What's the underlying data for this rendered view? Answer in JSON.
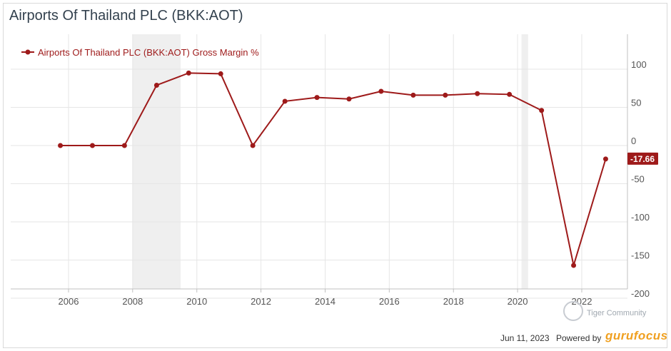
{
  "header": {
    "title": "Airports Of Thailand PLC  (BKK:AOT)"
  },
  "footer": {
    "date": "Jun 11, 2023",
    "powered_label": "Powered by",
    "brand": "gurufocus",
    "watermark": "Tiger Community"
  },
  "colors": {
    "series": "#9e1a1a",
    "shade": "#efefef",
    "grid": "#e6e6e6"
  },
  "chart_data": {
    "type": "line",
    "title": "",
    "xlabel": "",
    "ylabel": "",
    "ylim": [
      -200,
      140
    ],
    "y_ticks": [
      100,
      50,
      0,
      -50,
      -100,
      -150,
      -200
    ],
    "y_tick_labels": [
      "100",
      "50",
      "0",
      "-50",
      "-100",
      "-150",
      "-200"
    ],
    "x_ticks": [
      "2006",
      "2008",
      "2010",
      "2012",
      "2014",
      "2016",
      "2018",
      "2020",
      "2022"
    ],
    "grid": true,
    "legend": {
      "position": "top-left",
      "entries": [
        "Airports Of Thailand PLC (BKK:AOT) Gross Margin %"
      ]
    },
    "shaded_ranges": [
      [
        "2008-01-01",
        "2009-06-30"
      ],
      [
        "2020-02-15",
        "2020-04-30"
      ]
    ],
    "series": [
      {
        "name": "Airports Of Thailand PLC (BKK:AOT) Gross Margin %",
        "x": [
          "2005-09-30",
          "2006-09-30",
          "2007-09-30",
          "2008-09-30",
          "2009-09-30",
          "2010-09-30",
          "2011-09-30",
          "2012-09-30",
          "2013-09-30",
          "2014-09-30",
          "2015-09-30",
          "2016-09-30",
          "2017-09-30",
          "2018-09-30",
          "2019-09-30",
          "2020-09-30",
          "2021-09-30",
          "2022-09-30"
        ],
        "values": [
          0,
          0,
          0,
          79,
          95,
          94,
          0,
          58,
          63,
          61,
          71,
          66,
          66,
          68,
          67,
          46,
          -157,
          -17.66
        ]
      }
    ],
    "last_value_label": "-17.66"
  }
}
